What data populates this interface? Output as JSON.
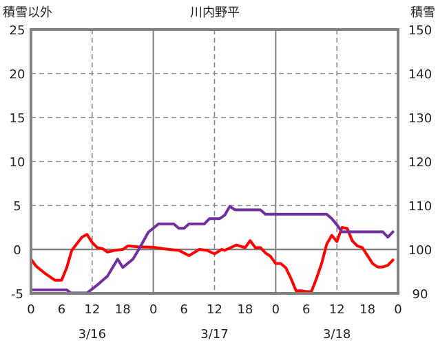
{
  "chart_data": {
    "type": "line",
    "title": "川内野平",
    "ylabel_left": "積雪以外",
    "ylabel_right": "積雪",
    "ylim_left": [
      -5,
      25
    ],
    "ylim_right": [
      90,
      150
    ],
    "yticks_left": [
      "-5",
      "0",
      "5",
      "10",
      "15",
      "20",
      "25"
    ],
    "yticks_right": [
      "90",
      "100",
      "110",
      "120",
      "130",
      "140",
      "150"
    ],
    "xlim_hours": [
      0,
      72
    ],
    "xticks": [
      "0",
      "6",
      "12",
      "18",
      "0",
      "6",
      "12",
      "18",
      "0",
      "6",
      "12",
      "18",
      "0"
    ],
    "date_labels": [
      "3/16",
      "3/17",
      "3/18"
    ],
    "grid": true,
    "series": [
      {
        "name": "積雪以外",
        "axis": "left",
        "color": "#ff0000",
        "points": [
          [
            0,
            -1.1
          ],
          [
            1,
            -1.9
          ],
          [
            2.7,
            -2.7
          ],
          [
            4.7,
            -3.5
          ],
          [
            6,
            -3.5
          ],
          [
            7,
            -2.1
          ],
          [
            8,
            -0.1
          ],
          [
            10,
            1.4
          ],
          [
            11,
            1.7
          ],
          [
            12,
            0.8
          ],
          [
            13,
            0.2
          ],
          [
            14,
            0.1
          ],
          [
            15,
            -0.3
          ],
          [
            16.5,
            -0.1
          ],
          [
            18,
            0
          ],
          [
            19,
            0.4
          ],
          [
            21,
            0.3
          ],
          [
            24,
            0.25
          ],
          [
            27,
            0
          ],
          [
            29,
            -0.1
          ],
          [
            31,
            -0.7
          ],
          [
            33,
            0
          ],
          [
            34.5,
            -0.1
          ],
          [
            36,
            -0.5
          ],
          [
            37.4,
            0
          ],
          [
            38,
            -0.1
          ],
          [
            40.3,
            0.5
          ],
          [
            42,
            0.2
          ],
          [
            43,
            1.0
          ],
          [
            44,
            0.2
          ],
          [
            45,
            0.2
          ],
          [
            46,
            -0.4
          ],
          [
            47,
            -0.8
          ],
          [
            48,
            -1.6
          ],
          [
            49,
            -1.6
          ],
          [
            50,
            -2.1
          ],
          [
            51,
            -3.3
          ],
          [
            52,
            -4.7
          ],
          [
            53,
            -4.7
          ],
          [
            54,
            -4.8
          ],
          [
            55,
            -4.8
          ],
          [
            56,
            -3.3
          ],
          [
            57,
            -1.6
          ],
          [
            58,
            0.6
          ],
          [
            59,
            1.6
          ],
          [
            60,
            0.9
          ],
          [
            61,
            2.5
          ],
          [
            62,
            2.4
          ],
          [
            63,
            1.0
          ],
          [
            64,
            0.4
          ],
          [
            65,
            0.2
          ],
          [
            66,
            -0.7
          ],
          [
            67,
            -1.6
          ],
          [
            68,
            -2.0
          ],
          [
            69,
            -2.0
          ],
          [
            70,
            -1.8
          ],
          [
            71,
            -1.2
          ]
        ]
      },
      {
        "name": "積雪",
        "axis": "right",
        "color": "#7030a0",
        "points": [
          [
            0,
            90.8
          ],
          [
            7,
            90.8
          ],
          [
            7.8,
            90.1
          ],
          [
            11,
            90.1
          ],
          [
            13,
            91.9
          ],
          [
            15,
            93.9
          ],
          [
            17,
            97.8
          ],
          [
            18,
            95.9
          ],
          [
            20,
            97.8
          ],
          [
            21.4,
            100.5
          ],
          [
            23,
            103.9
          ],
          [
            25,
            105.8
          ],
          [
            28,
            105.8
          ],
          [
            29,
            104.8
          ],
          [
            30,
            104.8
          ],
          [
            31,
            105.8
          ],
          [
            34,
            105.8
          ],
          [
            35,
            107
          ],
          [
            37,
            107
          ],
          [
            38,
            107.8
          ],
          [
            39,
            109.8
          ],
          [
            40,
            109
          ],
          [
            45,
            109
          ],
          [
            46,
            108
          ],
          [
            58,
            108
          ],
          [
            59,
            107
          ],
          [
            60,
            105.6
          ],
          [
            61,
            104
          ],
          [
            69,
            104
          ],
          [
            70,
            102.8
          ],
          [
            71,
            104
          ]
        ]
      }
    ]
  }
}
